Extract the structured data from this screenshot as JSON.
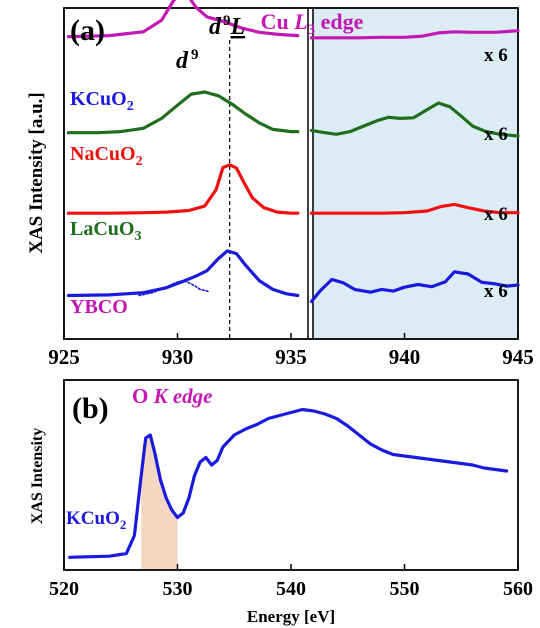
{
  "figure": {
    "colors": {
      "kcuo2": "#1a1adf",
      "nacuo2": "#f01010",
      "lacuo3": "#1e6e1e",
      "ybco": "#c418b4",
      "accent_magenta": "#c418b4",
      "shade_blue": "#dcecf5",
      "shade_peach": "#f4d7c2"
    }
  },
  "chart_data": [
    {
      "type": "line",
      "panel_label": "(a)",
      "title_prefix": "Cu ",
      "title_italic": "L",
      "title_sub": "3",
      "title_suffix": " edge",
      "ylabel": "XAS Intensity [a.u.]",
      "xlabel": "",
      "xlim": [
        925,
        945
      ],
      "x_ticks": [
        "925",
        "930",
        "935",
        "940",
        "945"
      ],
      "grid": false,
      "annotations": {
        "d9_label": "d",
        "d9_sup": "9",
        "d9L_label": "d",
        "d9L_sup": "9",
        "d9L_under": "L",
        "dashed_line_x": 932.3,
        "break_x": 935.7,
        "multiplier": "x 6"
      },
      "series": [
        {
          "key": "kcuo2",
          "label_main": "KCuO",
          "label_sub": "2",
          "baseline": 0.9,
          "x": [
            925.2,
            927,
            928.5,
            929.5,
            930.2,
            930.8,
            931.3,
            931.8,
            932.2,
            932.6,
            933.0,
            933.6,
            934.2,
            934.8,
            935.3,
            935.9,
            936.3,
            936.8,
            937.3,
            937.8,
            938.5,
            939.0,
            939.5,
            940.0,
            940.6,
            941.2,
            941.8,
            942.2,
            942.8,
            943.4,
            944.0,
            944.5,
            945.0
          ],
          "y": [
            0.19,
            0.2,
            0.24,
            0.33,
            0.44,
            0.54,
            0.64,
            0.86,
            1.0,
            0.95,
            0.74,
            0.46,
            0.3,
            0.22,
            0.19,
            0.08,
            0.28,
            0.48,
            0.42,
            0.3,
            0.25,
            0.3,
            0.27,
            0.34,
            0.39,
            0.35,
            0.44,
            0.62,
            0.58,
            0.43,
            0.4,
            0.36,
            0.38
          ]
        },
        {
          "key": "kcuo2_d9",
          "label_main": "",
          "dotted": true,
          "baseline": 0.9,
          "x": [
            928.3,
            928.9,
            929.4,
            929.8,
            930.1,
            930.4,
            930.7,
            931.0,
            931.4
          ],
          "y": [
            0.19,
            0.24,
            0.32,
            0.4,
            0.45,
            0.44,
            0.38,
            0.3,
            0.26
          ]
        },
        {
          "key": "nacuo2",
          "label_main": "NaCuO",
          "label_sub": "2",
          "baseline": 0.64,
          "x": [
            925.2,
            927,
            928.5,
            929.5,
            930.5,
            931.2,
            931.7,
            932.0,
            932.3,
            932.6,
            932.9,
            933.3,
            933.8,
            934.4,
            935.0,
            935.3,
            935.9,
            937,
            938,
            939,
            940,
            941,
            941.6,
            942.2,
            942.8,
            943.5,
            944.2,
            945.0
          ],
          "y": [
            0.12,
            0.12,
            0.13,
            0.14,
            0.17,
            0.25,
            0.55,
            0.95,
            1.0,
            0.94,
            0.7,
            0.4,
            0.22,
            0.14,
            0.12,
            0.12,
            0.12,
            0.12,
            0.12,
            0.12,
            0.13,
            0.16,
            0.24,
            0.28,
            0.22,
            0.16,
            0.13,
            0.13
          ]
        },
        {
          "key": "lacuo3",
          "label_main": "LaCuO",
          "label_sub": "3",
          "baseline": 0.39,
          "x": [
            925.2,
            926.5,
            927.5,
            928.5,
            929.3,
            930.0,
            930.6,
            931.2,
            931.8,
            932.4,
            933.0,
            933.6,
            934.2,
            935.0,
            935.3,
            935.9,
            936.5,
            937.0,
            937.6,
            938.2,
            938.8,
            939.3,
            939.8,
            940.4,
            941.0,
            941.5,
            942.0,
            942.5,
            943.0,
            943.6,
            944.2,
            945.0
          ],
          "y": [
            0.08,
            0.08,
            0.1,
            0.16,
            0.34,
            0.58,
            0.78,
            0.82,
            0.75,
            0.6,
            0.42,
            0.26,
            0.14,
            0.1,
            0.1,
            0.12,
            0.08,
            0.05,
            0.1,
            0.2,
            0.3,
            0.36,
            0.34,
            0.35,
            0.5,
            0.62,
            0.55,
            0.38,
            0.2,
            0.1,
            0.05,
            0.02
          ]
        },
        {
          "key": "ybco",
          "label_main": "YBCO",
          "baseline": 0.1,
          "x": [
            925.2,
            927,
            928.5,
            929.3,
            929.8,
            930.1,
            930.4,
            930.8,
            931.3,
            932.0,
            932.8,
            933.6,
            934.5,
            935.3,
            935.9,
            937,
            938,
            939,
            940,
            940.8,
            941.5,
            942.2,
            943.0,
            944.0,
            945.0
          ],
          "y": [
            0.08,
            0.1,
            0.17,
            0.38,
            0.72,
            0.88,
            0.86,
            0.62,
            0.44,
            0.36,
            0.24,
            0.16,
            0.12,
            0.1,
            0.06,
            0.06,
            0.06,
            0.07,
            0.07,
            0.09,
            0.15,
            0.17,
            0.16,
            0.16,
            0.19
          ]
        }
      ]
    },
    {
      "type": "line",
      "panel_label": "(b)",
      "title_prefix": "O ",
      "title_italic": "K edge",
      "ylabel": "XAS Intensity",
      "xlabel": "Energy [eV]",
      "xlim": [
        520,
        560
      ],
      "ylim": [
        0,
        1
      ],
      "x_ticks": [
        "520",
        "530",
        "540",
        "550",
        "560"
      ],
      "grid": false,
      "shaded_range": [
        526.3,
        530
      ],
      "series": [
        {
          "key": "kcuo2",
          "label_main": "KCuO",
          "label_sub": "2",
          "x": [
            520.5,
            522,
            524,
            525.5,
            526.2,
            526.8,
            527.2,
            527.6,
            528.0,
            528.5,
            529.0,
            529.5,
            530.0,
            530.5,
            531.0,
            531.5,
            532.0,
            532.5,
            533.0,
            533.5,
            534.0,
            535,
            536,
            537,
            538,
            539,
            540,
            541,
            542,
            543,
            544,
            545,
            546,
            547,
            548,
            549,
            550,
            551,
            552,
            553,
            554,
            555,
            556,
            557,
            558,
            559
          ],
          "y": [
            0.005,
            0.008,
            0.012,
            0.03,
            0.15,
            0.55,
            0.8,
            0.82,
            0.7,
            0.52,
            0.4,
            0.32,
            0.27,
            0.3,
            0.4,
            0.55,
            0.64,
            0.67,
            0.62,
            0.65,
            0.74,
            0.82,
            0.86,
            0.89,
            0.93,
            0.95,
            0.97,
            0.99,
            0.98,
            0.96,
            0.93,
            0.88,
            0.82,
            0.76,
            0.72,
            0.69,
            0.68,
            0.67,
            0.66,
            0.65,
            0.64,
            0.63,
            0.62,
            0.6,
            0.59,
            0.58
          ]
        }
      ]
    }
  ]
}
